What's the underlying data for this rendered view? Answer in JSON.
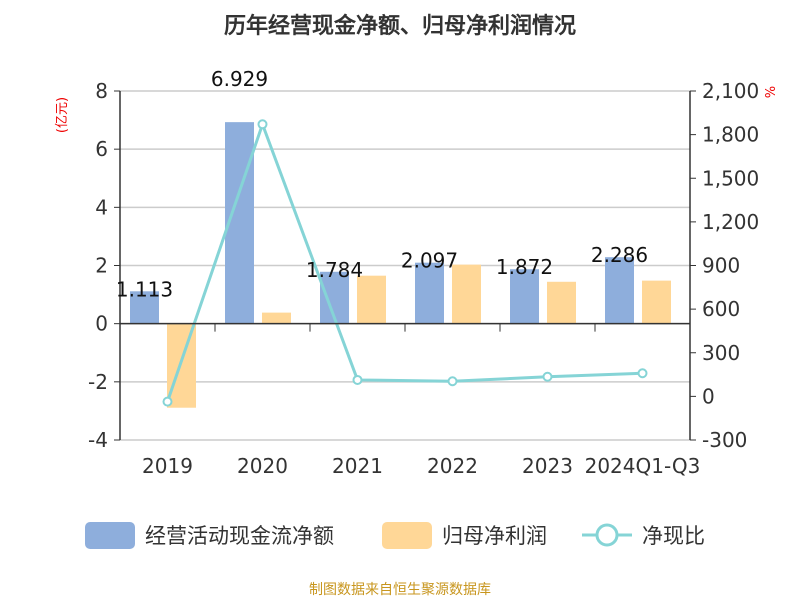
{
  "chart_data": {
    "type": "bar",
    "title": "历年经营现金净额、归母净利润情况",
    "ylabel": "(亿元)",
    "y2label": "%",
    "categories": [
      "2019",
      "2020",
      "2021",
      "2022",
      "2023",
      "2024Q1-Q3"
    ],
    "ylim": [
      -4,
      8
    ],
    "yticks": [
      -4,
      -2,
      0,
      2,
      4,
      6,
      8
    ],
    "y2lim": [
      -300,
      2100
    ],
    "y2ticks": [
      -300,
      0,
      300,
      600,
      900,
      1200,
      1500,
      1800,
      2100
    ],
    "grid": true,
    "legend_position": "bottom",
    "series": [
      {
        "name": "经营活动现金流净额",
        "type": "bar",
        "axis": "left",
        "color": "#8eaedc",
        "values": [
          1.113,
          6.929,
          1.784,
          2.097,
          1.872,
          2.286
        ],
        "labels": [
          "1.113",
          "6.929",
          "1.784",
          "2.097",
          "1.872",
          "2.286"
        ]
      },
      {
        "name": "归母净利润",
        "type": "bar",
        "axis": "left",
        "color": "#ffd797",
        "values": [
          -2.89,
          0.38,
          1.65,
          2.03,
          1.44,
          1.48
        ]
      },
      {
        "name": "净现比",
        "type": "line",
        "axis": "right",
        "color": "#85d4d6",
        "values": [
          -36,
          1871,
          113,
          104,
          135,
          159
        ]
      }
    ],
    "source": "制图数据来自恒生聚源数据库"
  }
}
